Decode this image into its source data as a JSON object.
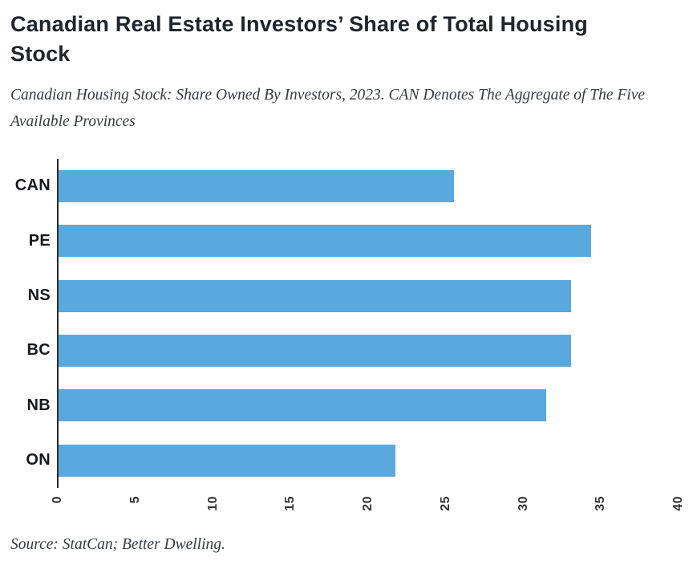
{
  "header": {
    "title": "Canadian Real Estate Investors’ Share of Total Housing Stock",
    "subtitle": "Canadian Housing Stock: Share Owned By Investors, 2023. CAN Denotes The Aggregate of The Five Available Provinces"
  },
  "chart_data": {
    "type": "bar",
    "orientation": "horizontal",
    "title": "Canadian Real Estate Investors’ Share of Total Housing Stock",
    "categories": [
      "CAN",
      "PE",
      "NS",
      "BC",
      "NB",
      "ON"
    ],
    "values": [
      25.5,
      34.3,
      33.0,
      33.0,
      31.4,
      21.7
    ],
    "xlabel": "",
    "ylabel": "",
    "xlim": [
      0,
      40
    ],
    "xticks": [
      0,
      5,
      10,
      15,
      20,
      25,
      30,
      35,
      40
    ],
    "xtick_rotation": 90,
    "grid": false,
    "legend": false,
    "bar_color": "#5aa9de",
    "axis_color": "#2b2b2b",
    "label_color": "#17191d"
  },
  "footer": {
    "source": "Source: StatCan; Better Dwelling."
  }
}
